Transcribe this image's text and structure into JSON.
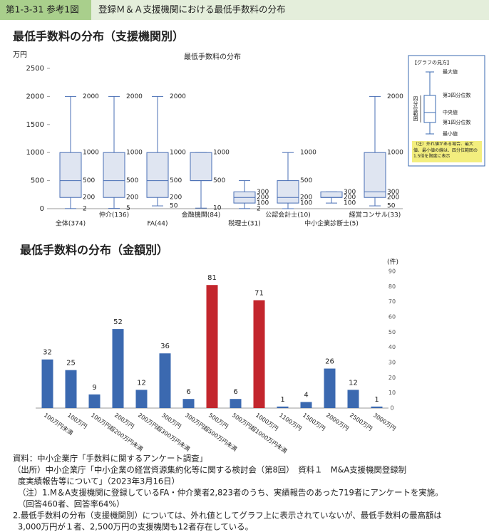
{
  "header": {
    "figure_number": "第1-3-31 参考1図",
    "title": "登録Ｍ＆Ａ支援機関における最低手数料の分布"
  },
  "chart_data": [
    {
      "type": "box",
      "heading": "最低手数料の分布（支援機関別）",
      "title": "最低手数料の分布",
      "y_label": "万円",
      "categories": [
        "全体(374)",
        "仲介(136)",
        "FA(44)",
        "金融機関(84)",
        "税理士(31)",
        "公認会計士(10)",
        "中小企業診断士(5)",
        "経営コンサル(33)"
      ],
      "values": [
        [
          2,
          200,
          500,
          1000,
          2000
        ],
        [
          5,
          200,
          500,
          1000,
          2000
        ],
        [
          50,
          200,
          500,
          1000,
          2000
        ],
        [
          10,
          500,
          500,
          1000,
          1000
        ],
        [
          2,
          100,
          200,
          300,
          500
        ],
        [
          0,
          100,
          200,
          500,
          1000
        ],
        [
          100,
          200,
          200,
          300,
          300
        ],
        [
          50,
          200,
          300,
          1000,
          2000
        ]
      ],
      "value_labels": [
        [
          "2",
          "200",
          "500",
          "1000",
          "2000"
        ],
        [
          "5",
          "200",
          "500",
          "1000",
          "2000"
        ],
        [
          "50",
          "200",
          "500",
          "1000",
          "2000"
        ],
        [
          "10",
          "500",
          null,
          "1000",
          null
        ],
        [
          "2",
          "100",
          "200",
          "300",
          null
        ],
        [
          null,
          "100",
          "200",
          "500",
          "1000"
        ],
        [
          "100",
          "200",
          null,
          "300",
          null
        ],
        [
          "50",
          "200",
          "300",
          "1000",
          "2000"
        ]
      ],
      "color": "#4a6fb5",
      "fill": "#dfe5f1",
      "ylim": [
        0,
        2500
      ],
      "yticks": [
        0,
        500,
        1000,
        1500,
        2000,
        2500
      ]
    },
    {
      "type": "bar",
      "heading": "最低手数料の分布（金額別）",
      "y_label": "(件)",
      "categories": [
        "100万円未満",
        "100万円",
        "100万円超200万円未満",
        "200万円",
        "200万円超300万円未満",
        "300万円",
        "300万円超500万円未満",
        "500万円",
        "500万円超1000万円未満",
        "1000万円",
        "1100万円",
        "1500万円",
        "2000万円",
        "2500万円",
        "3000万円"
      ],
      "values": [
        32,
        25,
        9,
        52,
        12,
        36,
        6,
        81,
        6,
        71,
        1,
        4,
        26,
        12,
        1
      ],
      "colors": [
        "#3b69b0",
        "#3b69b0",
        "#3b69b0",
        "#3b69b0",
        "#3b69b0",
        "#3b69b0",
        "#3b69b0",
        "#c3262d",
        "#3b69b0",
        "#c3262d",
        "#3b69b0",
        "#3b69b0",
        "#3b69b0",
        "#3b69b0",
        "#3b69b0"
      ],
      "ylim": [
        0,
        90
      ],
      "yticks": [
        0,
        10,
        20,
        30,
        40,
        50,
        60,
        70,
        80,
        90
      ],
      "y_axis_side": "right"
    }
  ],
  "guide": {
    "title": "【グラフの見方】",
    "max": "最大値",
    "q3": "第3四分位数",
    "median": "中央値",
    "q1": "第1四分位数",
    "min": "最小値",
    "iqr": "四分位範囲",
    "note": "（注）外れ値がある場合、最大値、最小値の線は、四分位範囲の1.5倍を限度に表示"
  },
  "notes": [
    "資料：中小企業庁「手数料に関するアンケート調査」",
    "（出所）中小企業庁「中小企業の経営資源集約化等に関する検討会（第8回）　資料１　M&A支援機関登録制",
    "度実績報告等について」（2023年3月16日）",
    "（注）1.M＆A支援機関に登録しているFA・仲介業者2,823者のうち、実績報告のあった719者にアンケートを実施。",
    "（回答460者、回答率64%）",
    "2.最低手数料の分布（支援機関別）については、外れ値としてグラフ上に表示されていないが、最低手数料の最高額は",
    "3,000万円が１者、2,500万円の支援機関も12者存在している。"
  ]
}
